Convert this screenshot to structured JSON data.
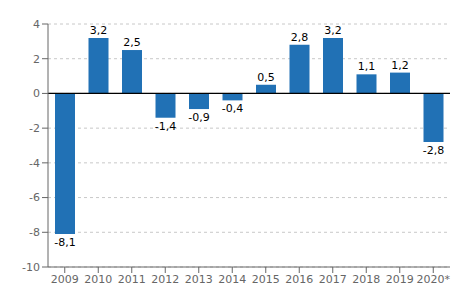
{
  "chart_data": {
    "type": "bar",
    "categories": [
      "2009",
      "2010",
      "2011",
      "2012",
      "2013",
      "2014",
      "2015",
      "2016",
      "2017",
      "2018",
      "2019",
      "2020*"
    ],
    "values": [
      -8.1,
      3.2,
      2.5,
      -1.4,
      -0.9,
      -0.4,
      0.5,
      2.8,
      3.2,
      1.1,
      1.2,
      -2.8
    ],
    "value_labels": [
      "-8,1",
      "3,2",
      "2,5",
      "-1,4",
      "-0,9",
      "-0,4",
      "0,5",
      "2,8",
      "3,2",
      "1,1",
      "1,2",
      "-2,8"
    ],
    "color": "#2171b5",
    "ylim": [
      -10,
      4
    ],
    "yticks": [
      -10,
      -8,
      -6,
      -4,
      -2,
      0,
      2,
      4
    ],
    "grid": true,
    "data_labels": true
  }
}
